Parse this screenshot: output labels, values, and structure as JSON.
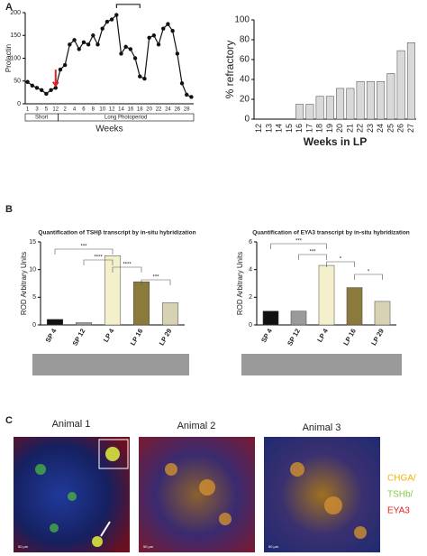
{
  "panels": [
    "A",
    "B",
    "C"
  ],
  "chart_data": [
    {
      "type": "line",
      "y_label": "Prolactin",
      "x_label": "Weeks",
      "color": "#111",
      "categories": [
        "1",
        null,
        "3",
        null,
        "5",
        null,
        "12",
        null,
        "2",
        null,
        "4",
        null,
        "6",
        null,
        "8",
        null,
        "10",
        null,
        "12",
        null,
        "14",
        null,
        "16",
        null,
        "18",
        null,
        "20",
        null,
        "22",
        null,
        "24",
        null,
        "26",
        null,
        "28",
        null
      ],
      "values": [
        48,
        40,
        35,
        30,
        22,
        30,
        35,
        75,
        85,
        130,
        140,
        120,
        135,
        130,
        150,
        130,
        165,
        180,
        185,
        195,
        110,
        125,
        120,
        100,
        60,
        55,
        145,
        150,
        130,
        165,
        175,
        160,
        110,
        45,
        20,
        15
      ],
      "period_labels": [
        "Short",
        "Long Photoperiod"
      ],
      "ylim": [
        0,
        200
      ],
      "yticks": [
        0,
        50,
        100,
        150,
        200
      ]
    },
    {
      "type": "bar",
      "y_label": "% refractory",
      "x_label": "Weeks in LP",
      "color": "#d9d9d9",
      "categories": [
        "12",
        "13",
        "14",
        "15",
        "16",
        "17",
        "18",
        "19",
        "20",
        "21",
        "22",
        "23",
        "24",
        "25",
        "26",
        "27"
      ],
      "values": [
        0,
        0,
        0,
        0,
        15,
        15,
        23,
        23,
        31,
        31,
        38,
        38,
        38,
        46,
        69,
        77
      ],
      "ylim": [
        0,
        100
      ],
      "yticks": [
        0,
        20,
        40,
        60,
        80,
        100
      ]
    },
    {
      "type": "bar",
      "title": "Quantification of TSHβ transcript by in-situ hybridization",
      "y_label": "ROD Arbitrary Units",
      "categories": [
        "SP 4",
        "SP 12",
        "LP 4",
        "LP 16",
        "LP 29"
      ],
      "values": [
        1.0,
        0.4,
        12.5,
        7.8,
        4.0
      ],
      "colors": [
        "#111111",
        "#9a9a9a",
        "#f5f0cc",
        "#8a7a3c",
        "#d8d2b4"
      ],
      "annotations": [
        "***",
        "****",
        "****",
        "***"
      ],
      "ylim": [
        0,
        15
      ],
      "yticks": [
        0,
        5,
        10,
        15
      ]
    },
    {
      "type": "bar",
      "title": "Quantification of EYA3 transcript by in-situ hybridization",
      "y_label": "ROD Arbitrary Units",
      "categories": [
        "SP 4",
        "SP 12",
        "LP 4",
        "LP 16",
        "LP 29"
      ],
      "values": [
        1.0,
        1.0,
        4.3,
        2.7,
        1.7
      ],
      "colors": [
        "#111111",
        "#9a9a9a",
        "#f5f0cc",
        "#8a7a3c",
        "#d8d2b4"
      ],
      "annotations": [
        "***",
        "***",
        "*",
        "*"
      ],
      "ylim": [
        0,
        6
      ],
      "yticks": [
        0,
        2,
        4,
        6
      ]
    }
  ],
  "images": {
    "labels": [
      "Animal 1",
      "Animal 2",
      "Animal 3"
    ],
    "legend": [
      {
        "text": "CHGA/",
        "color": "#f0b400"
      },
      {
        "text": "TSHb/",
        "color": "#7ec84a"
      },
      {
        "text": "EYA3",
        "color": "#e02020"
      }
    ],
    "scale_bar": "50 µm"
  }
}
